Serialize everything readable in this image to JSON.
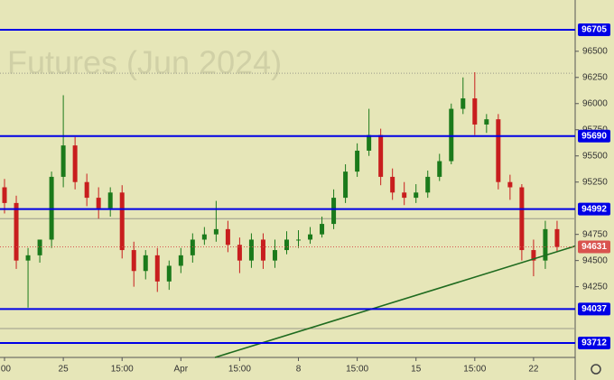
{
  "chart_data": {
    "type": "candlestick",
    "watermark": "Futures (Jun 2024)",
    "xlim": [
      -0.77,
      97.08
    ],
    "xticks": [
      {
        "value": 0,
        "label": ":00"
      },
      {
        "value": 10,
        "label": "25"
      },
      {
        "value": 20,
        "label": "15:00"
      },
      {
        "value": 30,
        "label": "Apr"
      },
      {
        "value": 40,
        "label": "15:00"
      },
      {
        "value": 50,
        "label": "8"
      },
      {
        "value": 60,
        "label": "15:00"
      },
      {
        "value": 70,
        "label": "15"
      },
      {
        "value": 80,
        "label": "15:00"
      },
      {
        "value": 90,
        "label": "22"
      }
    ],
    "ylim": [
      93574,
      96990
    ],
    "yticks": [
      96500,
      96250,
      96000,
      95750,
      95500,
      95250,
      94750,
      94500,
      94250
    ],
    "up_color": "#1b7a1b",
    "down_color": "#c81e1e",
    "x": [
      0,
      2,
      4,
      6,
      8,
      10,
      12,
      14,
      16,
      18,
      20,
      22,
      24,
      26,
      28,
      30,
      32,
      34,
      36,
      38,
      40,
      42,
      44,
      46,
      48,
      50,
      52,
      54,
      56,
      58,
      60,
      62,
      64,
      66,
      68,
      70,
      72,
      74,
      76,
      78,
      80,
      82,
      84,
      86,
      88,
      90,
      92,
      94
    ],
    "open": [
      95200,
      95050,
      94500,
      94550,
      94700,
      95300,
      95600,
      95250,
      95100,
      95000,
      95150,
      94600,
      94400,
      94550,
      94300,
      94450,
      94550,
      94700,
      94750,
      94800,
      94650,
      94500,
      94700,
      94500,
      94600,
      94700,
      94700,
      94750,
      94850,
      95100,
      95350,
      95550,
      95700,
      95300,
      95150,
      95100,
      95150,
      95300,
      95450,
      95950,
      96050,
      95800,
      95850,
      95250,
      95200,
      94600,
      94500,
      94800
    ],
    "high": [
      95280,
      95120,
      94620,
      94680,
      95350,
      96080,
      95680,
      95330,
      95200,
      95200,
      95220,
      94680,
      94600,
      94620,
      94500,
      94620,
      94760,
      94820,
      95070,
      94880,
      94720,
      94760,
      94760,
      94700,
      94780,
      94790,
      94820,
      94920,
      95180,
      95420,
      95620,
      95950,
      95760,
      95380,
      95250,
      95230,
      95360,
      95520,
      96000,
      96250,
      96300,
      95900,
      95900,
      95320,
      95230,
      94700,
      94880,
      94880
    ],
    "low": [
      94950,
      94420,
      94050,
      94480,
      94620,
      95200,
      95180,
      95020,
      94900,
      94920,
      94520,
      94250,
      94320,
      94200,
      94220,
      94380,
      94480,
      94650,
      94680,
      94580,
      94380,
      94430,
      94420,
      94430,
      94560,
      94620,
      94660,
      94720,
      94800,
      95050,
      95300,
      95500,
      95220,
      95080,
      95030,
      95050,
      95100,
      95260,
      95420,
      95900,
      95700,
      95720,
      95180,
      95080,
      94500,
      94350,
      94420,
      94580
    ],
    "close": [
      95050,
      94500,
      94550,
      94700,
      95300,
      95600,
      95250,
      95100,
      95000,
      95150,
      94600,
      94400,
      94550,
      94300,
      94450,
      94550,
      94700,
      94750,
      94800,
      94650,
      94500,
      94700,
      94500,
      94600,
      94700,
      94700,
      94750,
      94850,
      95100,
      95350,
      95550,
      95700,
      95300,
      95150,
      95100,
      95150,
      95300,
      95450,
      95950,
      96050,
      95800,
      95850,
      95250,
      95200,
      94600,
      94500,
      94800,
      94630
    ],
    "levels": [
      96705,
      95690,
      94992,
      94037,
      93712
    ],
    "level_color": "#0000e6",
    "gray_levels": [
      96290,
      94900,
      93850
    ],
    "last_price": 94631,
    "last_color": "#d9534f",
    "trendline": {
      "x": [
        35.8,
        97.08
      ],
      "values": [
        93574,
        94638
      ],
      "color": "#1f6b1f"
    }
  }
}
